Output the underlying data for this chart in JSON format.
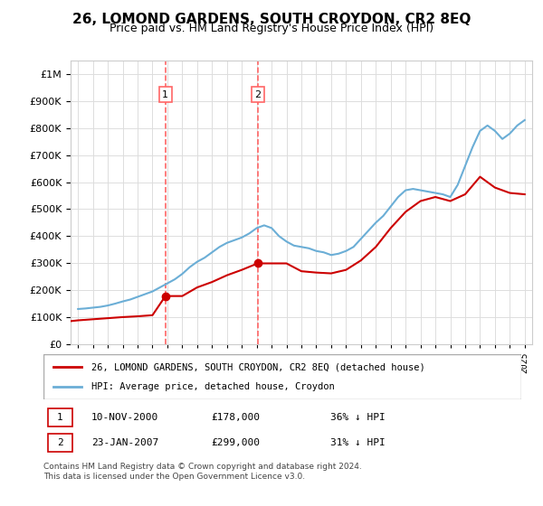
{
  "title": "26, LOMOND GARDENS, SOUTH CROYDON, CR2 8EQ",
  "subtitle": "Price paid vs. HM Land Registry's House Price Index (HPI)",
  "legend_label_red": "26, LOMOND GARDENS, SOUTH CROYDON, CR2 8EQ (detached house)",
  "legend_label_blue": "HPI: Average price, detached house, Croydon",
  "footer": "Contains HM Land Registry data © Crown copyright and database right 2024.\nThis data is licensed under the Open Government Licence v3.0.",
  "transactions": [
    {
      "label": "1",
      "date_str": "10-NOV-2000",
      "date_x": 2000.87,
      "price": 178000,
      "pct": "36% ↓ HPI"
    },
    {
      "label": "2",
      "date_str": "23-JAN-2007",
      "date_x": 2007.06,
      "price": 299000,
      "pct": "31% ↓ HPI"
    }
  ],
  "hpi_color": "#6baed6",
  "sale_color": "#cc0000",
  "vline_color": "#ff6666",
  "marker_color": "#cc0000",
  "ylim": [
    0,
    1050000
  ],
  "xlim": [
    1994.5,
    2025.5
  ],
  "hpi_x": [
    1995,
    1995.5,
    1996,
    1996.5,
    1997,
    1997.5,
    1998,
    1998.5,
    1999,
    1999.5,
    2000,
    2000.5,
    2001,
    2001.5,
    2002,
    2002.5,
    2003,
    2003.5,
    2004,
    2004.5,
    2005,
    2005.5,
    2006,
    2006.5,
    2007,
    2007.5,
    2008,
    2008.5,
    2009,
    2009.5,
    2010,
    2010.5,
    2011,
    2011.5,
    2012,
    2012.5,
    2013,
    2013.5,
    2014,
    2014.5,
    2015,
    2015.5,
    2016,
    2016.5,
    2017,
    2017.5,
    2018,
    2018.5,
    2019,
    2019.5,
    2020,
    2020.5,
    2021,
    2021.5,
    2022,
    2022.5,
    2023,
    2023.5,
    2024,
    2024.5,
    2025
  ],
  "hpi_y": [
    130000,
    132000,
    135000,
    138000,
    143000,
    150000,
    158000,
    165000,
    175000,
    185000,
    195000,
    210000,
    225000,
    240000,
    260000,
    285000,
    305000,
    320000,
    340000,
    360000,
    375000,
    385000,
    395000,
    410000,
    430000,
    440000,
    430000,
    400000,
    380000,
    365000,
    360000,
    355000,
    345000,
    340000,
    330000,
    335000,
    345000,
    360000,
    390000,
    420000,
    450000,
    475000,
    510000,
    545000,
    570000,
    575000,
    570000,
    565000,
    560000,
    555000,
    545000,
    590000,
    660000,
    730000,
    790000,
    810000,
    790000,
    760000,
    780000,
    810000,
    830000
  ],
  "sale_x": [
    1994.5,
    1995,
    1996,
    1997,
    1998,
    1999,
    2000,
    2000.87,
    2001,
    2002,
    2003,
    2004,
    2005,
    2006,
    2007.06,
    2008,
    2009,
    2010,
    2011,
    2012,
    2013,
    2014,
    2015,
    2016,
    2017,
    2018,
    2019,
    2020,
    2021,
    2022,
    2023,
    2024,
    2025
  ],
  "sale_y": [
    85000,
    88000,
    92000,
    96000,
    100000,
    103000,
    107000,
    178000,
    178000,
    178000,
    210000,
    230000,
    255000,
    275000,
    299000,
    299000,
    299000,
    270000,
    265000,
    262000,
    275000,
    310000,
    360000,
    430000,
    490000,
    530000,
    545000,
    530000,
    555000,
    620000,
    580000,
    560000,
    555000
  ]
}
